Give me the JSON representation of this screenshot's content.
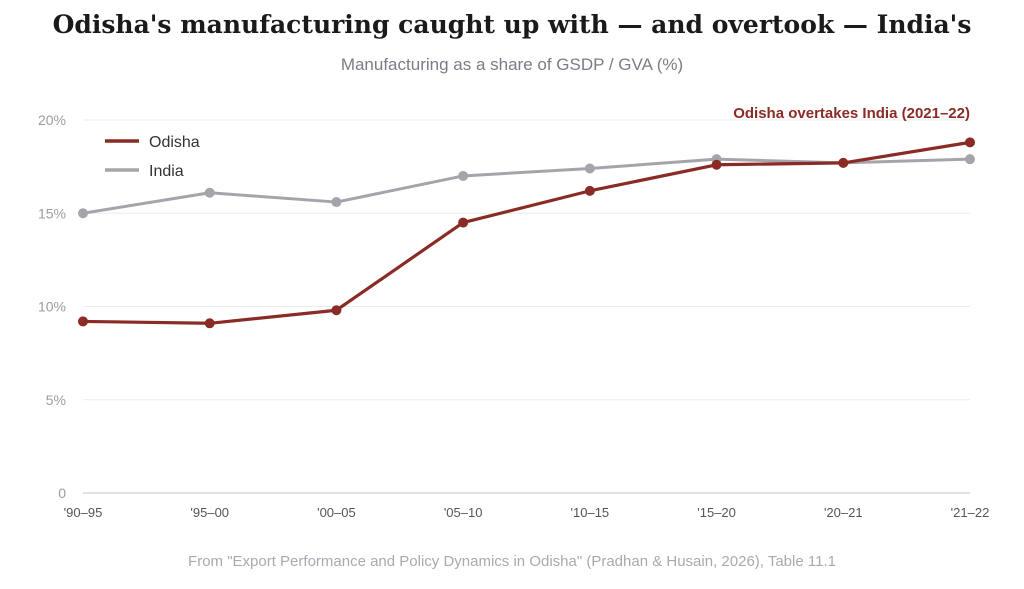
{
  "title": "Odisha's manufacturing caught up with — and overtook — India's",
  "subtitle": "Manufacturing as a share of GSDP / GVA (%)",
  "source": "From \"Export Performance and Policy Dynamics in Odisha\" (Pradhan & Husain, 2026), Table 11.1",
  "chart_data": {
    "type": "line",
    "categories": [
      "'90–95",
      "'95–00",
      "'00–05",
      "'05–10",
      "'10–15",
      "'15–20",
      "'20–21",
      "'21–22"
    ],
    "series": [
      {
        "name": "Odisha",
        "color": "#8b2b25",
        "values": [
          9.2,
          9.1,
          9.8,
          14.5,
          16.2,
          17.6,
          17.7,
          18.8
        ]
      },
      {
        "name": "India",
        "color": "#a4a4ab",
        "values": [
          15.0,
          16.1,
          15.6,
          17.0,
          17.4,
          17.9,
          17.7,
          17.9
        ]
      }
    ],
    "yticks": [
      {
        "value": 0,
        "label": "0"
      },
      {
        "value": 5,
        "label": "5%"
      },
      {
        "value": 10,
        "label": "10%"
      },
      {
        "value": 15,
        "label": "15%"
      },
      {
        "value": 20,
        "label": "20%"
      }
    ],
    "ylim": [
      0,
      20
    ],
    "grid": true,
    "legend": "top-left",
    "annotation": {
      "text": "Odisha overtakes India (2021–22)",
      "color": "#8b2b25"
    }
  }
}
